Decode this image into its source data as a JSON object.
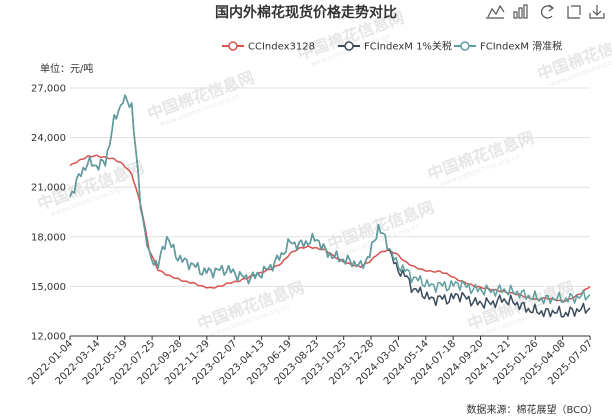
{
  "title": "国内外棉花现货价格走势对比",
  "unit_label": "单位：元/吨",
  "source_label": "数据来源：棉花展望（BCO）",
  "toolbox": [
    "line-chart-icon",
    "bar-chart-icon",
    "restore-icon",
    "zoom-icon",
    "download-icon"
  ],
  "colors": {
    "cc": "#d9534f",
    "fc1": "#3b4a5a",
    "fcs": "#5f9ea0",
    "grid": "#e0e0e0",
    "axis": "#333333"
  },
  "watermark": {
    "text": "中国棉花信息网",
    "sub": "www.cottonchina.org.cn"
  },
  "chart_data": {
    "type": "line",
    "title": "国内外棉花现货价格走势对比",
    "ylabel": "单位：元/吨",
    "ylim": [
      12000,
      27000
    ],
    "yticks": [
      "12,000",
      "15,000",
      "18,000",
      "21,000",
      "24,000",
      "27,000"
    ],
    "xticks": [
      "2022-01-04",
      "2022-03-14",
      "2022-05-19",
      "2022-07-25",
      "2022-09-28",
      "2022-11-29",
      "2023-02-07",
      "2023-04-13",
      "2023-06-19",
      "2023-08-23",
      "2023-10-25",
      "2023-12-28",
      "2024-03-07",
      "2024-05-14",
      "2024-07-18",
      "2024-09-20",
      "2024-11-21",
      "2025-01-26",
      "2025-04-08",
      "2025-07-07"
    ],
    "legend_position": "top-right",
    "grid": true,
    "series": [
      {
        "name": "CCIndex3128",
        "key": "cc",
        "values": [
          22300,
          22600,
          22850,
          22900,
          22800,
          22700,
          22400,
          21800,
          20000,
          17200,
          16000,
          15700,
          15500,
          15300,
          15200,
          15000,
          14900,
          15000,
          15200,
          15300,
          15500,
          15700,
          15900,
          16100,
          16400,
          17000,
          17300,
          17400,
          17300,
          17200,
          16800,
          16500,
          16300,
          16200,
          16500,
          17000,
          17200,
          17000,
          16500,
          16200,
          16000,
          15900,
          15900,
          15700,
          15400,
          15200,
          15000,
          14900,
          14800,
          14700,
          14600,
          14500,
          14300,
          14200,
          14300,
          14200,
          14100,
          14300,
          14600,
          15000
        ]
      },
      {
        "name": "FCIndexM 1%关税",
        "key": "fc1",
        "values": [
          20400,
          21600,
          22500,
          22300,
          22500,
          25000,
          26300,
          26000,
          20000,
          16800,
          16300,
          18000,
          16900,
          16500,
          16300,
          15900,
          15900,
          16000,
          16000,
          15700,
          15500,
          15600,
          15900,
          16300,
          16900,
          17700,
          17500,
          17700,
          17900,
          17100,
          16800,
          16600,
          16500,
          16200,
          16900,
          18600,
          17600,
          16100,
          15700,
          14800,
          14600,
          14200,
          14300,
          14200,
          14500,
          14300,
          14000,
          14000,
          14000,
          14200,
          14100,
          13900,
          13600,
          13500,
          13400,
          13500,
          13300,
          13500,
          13600,
          13700
        ]
      },
      {
        "name": "FCIndexM 滑准税",
        "key": "fcs",
        "values": [
          20400,
          21600,
          22500,
          22300,
          22500,
          25000,
          26300,
          26000,
          20000,
          16800,
          16300,
          18000,
          16900,
          16500,
          16300,
          15900,
          15900,
          16000,
          16000,
          15700,
          15500,
          15600,
          15900,
          16300,
          16900,
          17700,
          17500,
          17700,
          17900,
          17100,
          16800,
          16600,
          16500,
          16200,
          16900,
          18600,
          17600,
          16400,
          16000,
          15500,
          15300,
          15000,
          15100,
          15000,
          15200,
          15000,
          14800,
          14800,
          14700,
          14800,
          14700,
          14600,
          14400,
          14300,
          14200,
          14300,
          14200,
          14300,
          14400,
          14500
        ]
      }
    ]
  }
}
